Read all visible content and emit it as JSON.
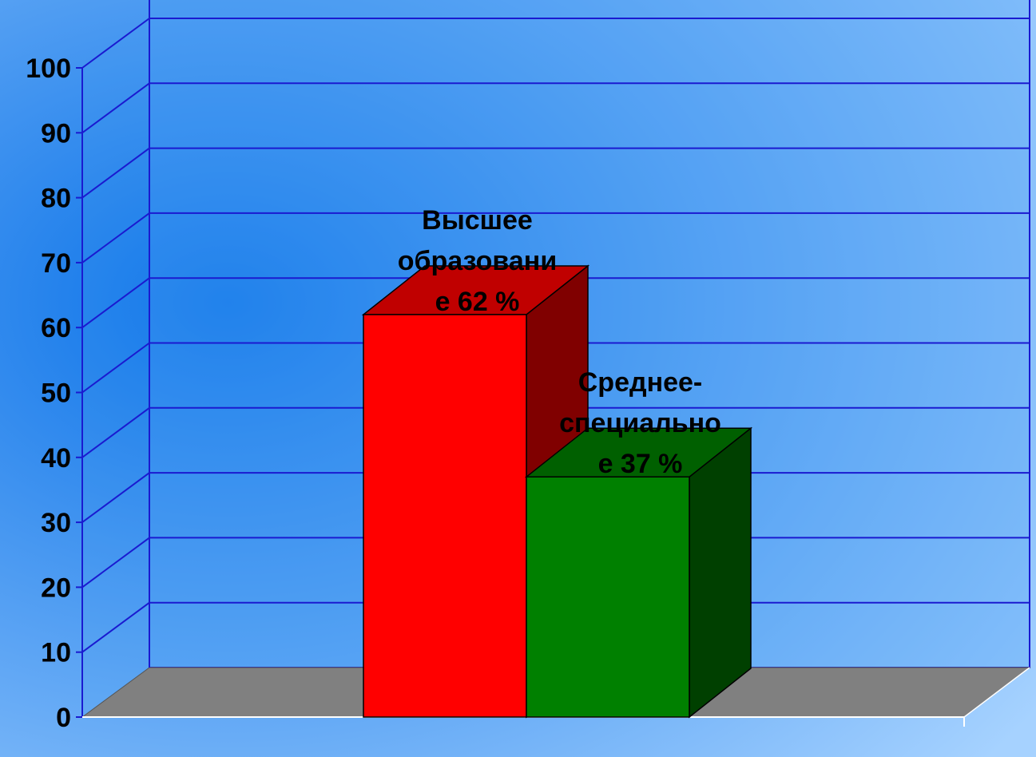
{
  "chart_data": {
    "type": "bar",
    "style": "3d-column",
    "categories": [
      "Высшее образование",
      "Среднее-специальное"
    ],
    "values": [
      62,
      37
    ],
    "unit": "%",
    "data_labels": [
      [
        "Высшее",
        "образовани",
        "е  62 %"
      ],
      [
        "Среднее-",
        "специально",
        "е 37 %"
      ]
    ],
    "ylim": [
      0,
      100
    ],
    "y_ticks": [
      0,
      10,
      20,
      30,
      40,
      50,
      60,
      70,
      80,
      90,
      100
    ],
    "grid": true,
    "legend": "none",
    "colors": {
      "background_center": "#0a72e8",
      "background_edge": "#a6d2ff",
      "back_wall": "#4da1f3",
      "gridline": "#1a1ad0",
      "floor": "#808080",
      "bar_front": [
        "#ff0000",
        "#008000"
      ],
      "bar_side": [
        "#800000",
        "#004000"
      ],
      "bar_top": [
        "#c00000",
        "#006000"
      ]
    }
  }
}
